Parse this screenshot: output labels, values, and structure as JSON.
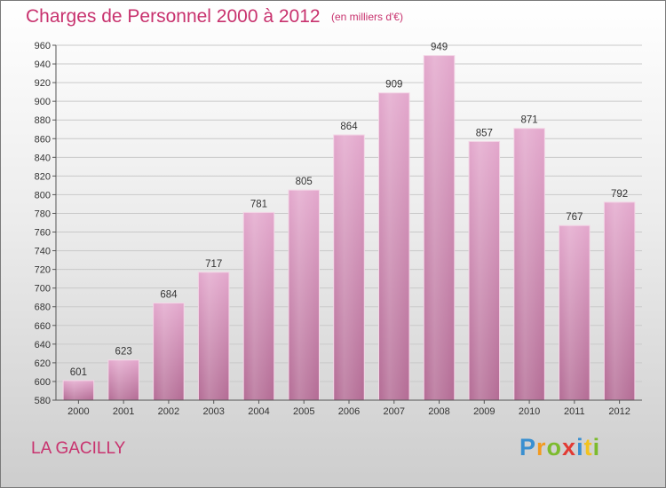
{
  "header": {
    "title": "Charges de Personnel 2000 à 2012",
    "subtitle": "(en milliers d'€)"
  },
  "footer": {
    "commune": "LA GACILLY",
    "logo_letters": [
      {
        "ch": "P",
        "color": "#3a8fd0"
      },
      {
        "ch": "r",
        "color": "#f29a1f"
      },
      {
        "ch": "o",
        "color": "#7cbb2d"
      },
      {
        "ch": "x",
        "color": "#e23a33"
      },
      {
        "ch": "i",
        "color": "#3a8fd0"
      },
      {
        "ch": "t",
        "color": "#f2c31f"
      },
      {
        "ch": "i",
        "color": "#7cbb2d"
      }
    ]
  },
  "colors": {
    "bar_top": "#e3a7cc",
    "bar_bottom": "#b36b94",
    "accent_text": "#c8326e"
  },
  "chart_data": {
    "type": "bar",
    "categories": [
      "2000",
      "2001",
      "2002",
      "2003",
      "2004",
      "2005",
      "2006",
      "2007",
      "2008",
      "2009",
      "2010",
      "2011",
      "2012"
    ],
    "values": [
      601,
      623,
      684,
      717,
      781,
      805,
      864,
      909,
      949,
      857,
      871,
      767,
      792
    ],
    "ylim": [
      580,
      960
    ],
    "yticks": [
      580,
      600,
      620,
      640,
      660,
      680,
      700,
      720,
      740,
      760,
      780,
      800,
      820,
      840,
      860,
      880,
      900,
      920,
      940,
      960
    ],
    "grid": true
  }
}
